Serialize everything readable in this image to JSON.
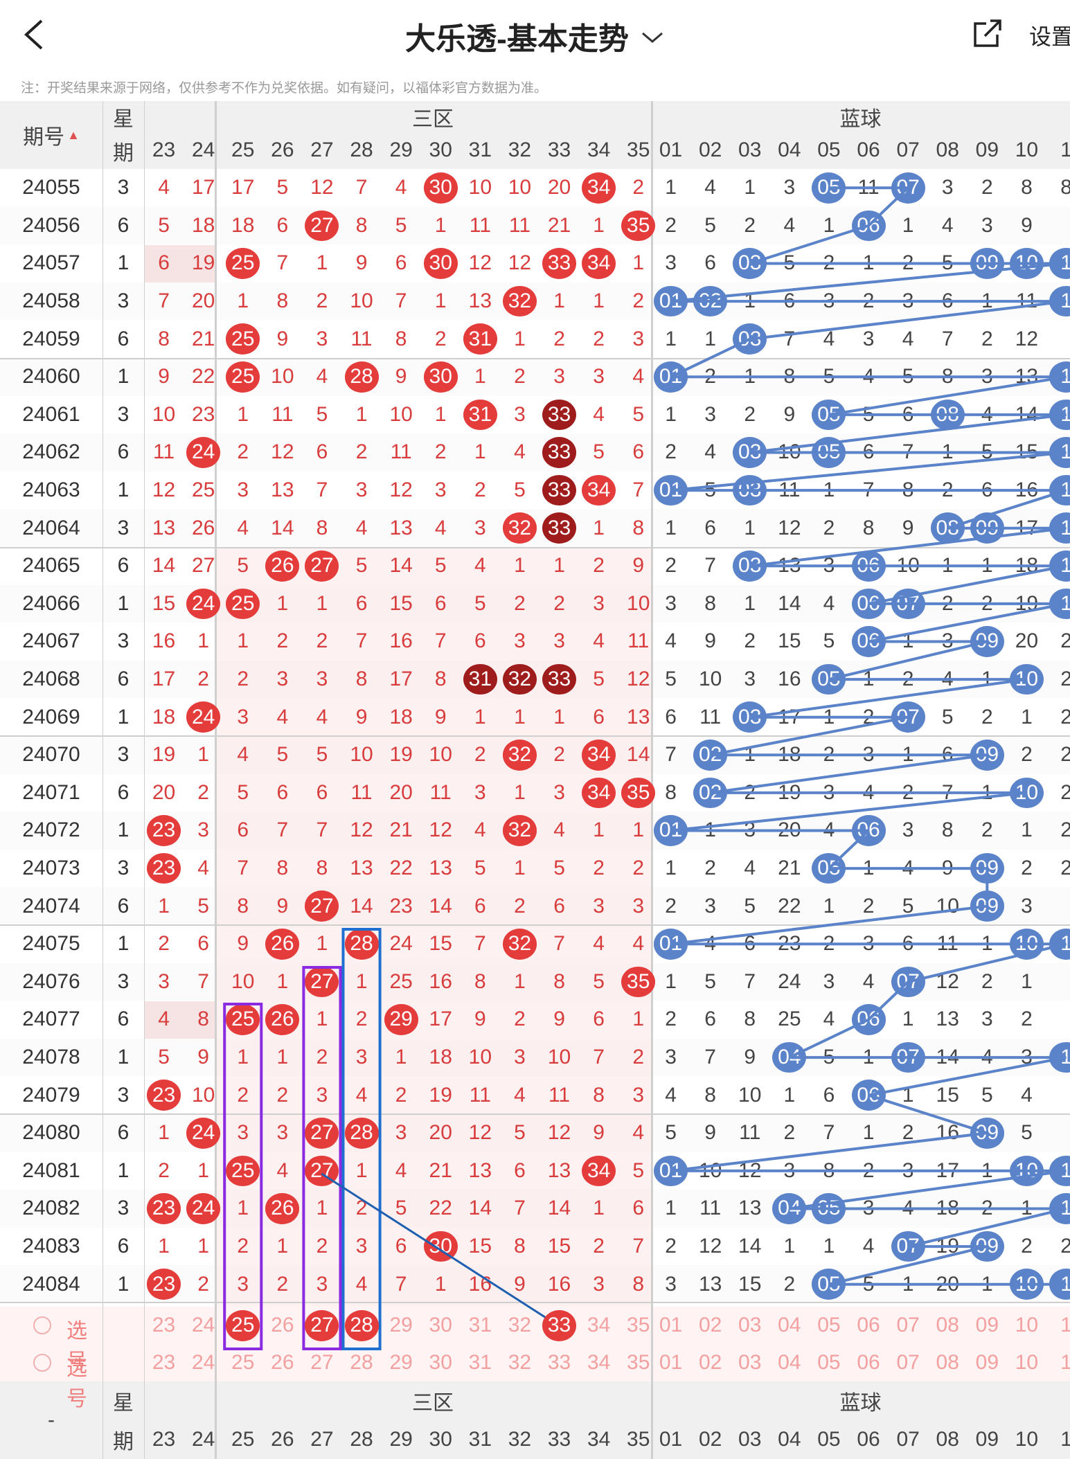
{
  "header": {
    "title": "大乐透-基本走势",
    "settings_label": "设置",
    "note": "注：开奖结果来源于网络，仅供参考不作为兑奖依据。如有疑问，以福体彩官方数据为准。"
  },
  "table": {
    "period_header": "期号",
    "weekday_header": [
      "星",
      "期"
    ],
    "zone3_label": "三区",
    "blue_label": "蓝球",
    "red_cols": [
      "23",
      "24",
      "25",
      "26",
      "27",
      "28",
      "29",
      "30",
      "31",
      "32",
      "33",
      "34",
      "35"
    ],
    "blue_cols": [
      "01",
      "02",
      "03",
      "04",
      "05",
      "06",
      "07",
      "08",
      "09",
      "10",
      "1"
    ],
    "select_label": "选号",
    "bottom_dash": "-",
    "rows": [
      {
        "p": "24055",
        "w": "3",
        "r": [
          "4",
          "17",
          "17",
          "5",
          "12",
          "7",
          "4",
          "30",
          "10",
          "10",
          "20",
          "34",
          "2"
        ],
        "b": [
          "1",
          "4",
          "1",
          "3",
          "05",
          "11",
          "07",
          "3",
          "2",
          "8",
          "8"
        ]
      },
      {
        "p": "24056",
        "w": "6",
        "r": [
          "5",
          "18",
          "18",
          "6",
          "27",
          "8",
          "5",
          "1",
          "11",
          "11",
          "21",
          "1",
          "35"
        ],
        "b": [
          "2",
          "5",
          "2",
          "4",
          "1",
          "06",
          "1",
          "4",
          "3",
          "9",
          ""
        ]
      },
      {
        "p": "24057",
        "w": "1",
        "r": [
          "6",
          "19",
          "25",
          "7",
          "1",
          "9",
          "6",
          "30",
          "12",
          "12",
          "33",
          "34",
          "1"
        ],
        "b": [
          "3",
          "6",
          "03",
          "5",
          "2",
          "1",
          "2",
          "5",
          "09",
          "10",
          "1"
        ]
      },
      {
        "p": "24058",
        "w": "3",
        "r": [
          "7",
          "20",
          "1",
          "8",
          "2",
          "10",
          "7",
          "1",
          "13",
          "32",
          "1",
          "1",
          "2"
        ],
        "b": [
          "01",
          "02",
          "1",
          "6",
          "3",
          "2",
          "3",
          "6",
          "1",
          "11",
          "1"
        ]
      },
      {
        "p": "24059",
        "w": "6",
        "r": [
          "8",
          "21",
          "25",
          "9",
          "3",
          "11",
          "8",
          "2",
          "31",
          "1",
          "2",
          "2",
          "3"
        ],
        "b": [
          "1",
          "1",
          "03",
          "7",
          "4",
          "3",
          "4",
          "7",
          "2",
          "12",
          ""
        ]
      },
      {
        "p": "24060",
        "w": "1",
        "r": [
          "9",
          "22",
          "25",
          "10",
          "4",
          "28",
          "9",
          "30",
          "1",
          "2",
          "3",
          "3",
          "4"
        ],
        "b": [
          "01",
          "2",
          "1",
          "8",
          "5",
          "4",
          "5",
          "8",
          "3",
          "13",
          "1"
        ]
      },
      {
        "p": "24061",
        "w": "3",
        "r": [
          "10",
          "23",
          "1",
          "11",
          "5",
          "1",
          "10",
          "1",
          "31",
          "3",
          "33",
          "4",
          "5"
        ],
        "b": [
          "1",
          "3",
          "2",
          "9",
          "05",
          "5",
          "6",
          "08",
          "4",
          "14",
          "1"
        ]
      },
      {
        "p": "24062",
        "w": "6",
        "r": [
          "11",
          "24",
          "2",
          "12",
          "6",
          "2",
          "11",
          "2",
          "1",
          "4",
          "33",
          "5",
          "6"
        ],
        "b": [
          "2",
          "4",
          "03",
          "10",
          "05",
          "6",
          "7",
          "1",
          "5",
          "15",
          "1"
        ]
      },
      {
        "p": "24063",
        "w": "1",
        "r": [
          "12",
          "25",
          "3",
          "13",
          "7",
          "3",
          "12",
          "3",
          "2",
          "5",
          "33",
          "34",
          "7"
        ],
        "b": [
          "01",
          "5",
          "03",
          "11",
          "1",
          "7",
          "8",
          "2",
          "6",
          "16",
          "1"
        ]
      },
      {
        "p": "24064",
        "w": "3",
        "r": [
          "13",
          "26",
          "4",
          "14",
          "8",
          "4",
          "13",
          "4",
          "3",
          "32",
          "33",
          "1",
          "8"
        ],
        "b": [
          "1",
          "6",
          "1",
          "12",
          "2",
          "8",
          "9",
          "08",
          "09",
          "17",
          "1"
        ]
      },
      {
        "p": "24065",
        "w": "6",
        "r": [
          "14",
          "27",
          "5",
          "26",
          "27",
          "5",
          "14",
          "5",
          "4",
          "1",
          "1",
          "2",
          "9"
        ],
        "b": [
          "2",
          "7",
          "03",
          "13",
          "3",
          "06",
          "10",
          "1",
          "1",
          "18",
          "1"
        ]
      },
      {
        "p": "24066",
        "w": "1",
        "r": [
          "15",
          "24",
          "25",
          "1",
          "1",
          "6",
          "15",
          "6",
          "5",
          "2",
          "2",
          "3",
          "10"
        ],
        "b": [
          "3",
          "8",
          "1",
          "14",
          "4",
          "06",
          "07",
          "2",
          "2",
          "19",
          "1"
        ]
      },
      {
        "p": "24067",
        "w": "3",
        "r": [
          "16",
          "1",
          "1",
          "2",
          "2",
          "7",
          "16",
          "7",
          "6",
          "3",
          "3",
          "4",
          "11"
        ],
        "b": [
          "4",
          "9",
          "2",
          "15",
          "5",
          "06",
          "1",
          "3",
          "09",
          "20",
          "2"
        ]
      },
      {
        "p": "24068",
        "w": "6",
        "r": [
          "17",
          "2",
          "2",
          "3",
          "3",
          "8",
          "17",
          "8",
          "31",
          "32",
          "33",
          "5",
          "12"
        ],
        "b": [
          "5",
          "10",
          "3",
          "16",
          "05",
          "1",
          "2",
          "4",
          "1",
          "10",
          "2"
        ]
      },
      {
        "p": "24069",
        "w": "1",
        "r": [
          "18",
          "24",
          "3",
          "4",
          "4",
          "9",
          "18",
          "9",
          "1",
          "1",
          "1",
          "6",
          "13"
        ],
        "b": [
          "6",
          "11",
          "03",
          "17",
          "1",
          "2",
          "07",
          "5",
          "2",
          "1",
          "2"
        ]
      },
      {
        "p": "24070",
        "w": "3",
        "r": [
          "19",
          "1",
          "4",
          "5",
          "5",
          "10",
          "19",
          "10",
          "2",
          "32",
          "2",
          "34",
          "14"
        ],
        "b": [
          "7",
          "02",
          "1",
          "18",
          "2",
          "3",
          "1",
          "6",
          "09",
          "2",
          "2"
        ]
      },
      {
        "p": "24071",
        "w": "6",
        "r": [
          "20",
          "2",
          "5",
          "6",
          "6",
          "11",
          "20",
          "11",
          "3",
          "1",
          "3",
          "34",
          "35"
        ],
        "b": [
          "8",
          "02",
          "2",
          "19",
          "3",
          "4",
          "2",
          "7",
          "1",
          "10",
          "2"
        ]
      },
      {
        "p": "24072",
        "w": "1",
        "r": [
          "23",
          "3",
          "6",
          "7",
          "7",
          "12",
          "21",
          "12",
          "4",
          "32",
          "4",
          "1",
          "1"
        ],
        "b": [
          "01",
          "1",
          "3",
          "20",
          "4",
          "06",
          "3",
          "8",
          "2",
          "1",
          "2"
        ]
      },
      {
        "p": "24073",
        "w": "3",
        "r": [
          "23",
          "4",
          "7",
          "8",
          "8",
          "13",
          "22",
          "13",
          "5",
          "1",
          "5",
          "2",
          "2"
        ],
        "b": [
          "1",
          "2",
          "4",
          "21",
          "05",
          "1",
          "4",
          "9",
          "09",
          "2",
          "2"
        ]
      },
      {
        "p": "24074",
        "w": "6",
        "r": [
          "1",
          "5",
          "8",
          "9",
          "27",
          "14",
          "23",
          "14",
          "6",
          "2",
          "6",
          "3",
          "3"
        ],
        "b": [
          "2",
          "3",
          "5",
          "22",
          "1",
          "2",
          "5",
          "10",
          "09",
          "3",
          ""
        ]
      },
      {
        "p": "24075",
        "w": "1",
        "r": [
          "2",
          "6",
          "9",
          "26",
          "1",
          "28",
          "24",
          "15",
          "7",
          "32",
          "7",
          "4",
          "4"
        ],
        "b": [
          "01",
          "4",
          "6",
          "23",
          "2",
          "3",
          "6",
          "11",
          "1",
          "10",
          "1"
        ]
      },
      {
        "p": "24076",
        "w": "3",
        "r": [
          "3",
          "7",
          "10",
          "1",
          "27",
          "1",
          "25",
          "16",
          "8",
          "1",
          "8",
          "5",
          "35"
        ],
        "b": [
          "1",
          "5",
          "7",
          "24",
          "3",
          "4",
          "07",
          "12",
          "2",
          "1",
          ""
        ]
      },
      {
        "p": "24077",
        "w": "6",
        "r": [
          "4",
          "8",
          "25",
          "26",
          "1",
          "2",
          "29",
          "17",
          "9",
          "2",
          "9",
          "6",
          "1"
        ],
        "b": [
          "2",
          "6",
          "8",
          "25",
          "4",
          "06",
          "1",
          "13",
          "3",
          "2",
          ""
        ]
      },
      {
        "p": "24078",
        "w": "1",
        "r": [
          "5",
          "9",
          "1",
          "1",
          "2",
          "3",
          "1",
          "18",
          "10",
          "3",
          "10",
          "7",
          "2"
        ],
        "b": [
          "3",
          "7",
          "9",
          "04",
          "5",
          "1",
          "07",
          "14",
          "4",
          "3",
          "1"
        ]
      },
      {
        "p": "24079",
        "w": "3",
        "r": [
          "23",
          "10",
          "2",
          "2",
          "3",
          "4",
          "2",
          "19",
          "11",
          "4",
          "11",
          "8",
          "3"
        ],
        "b": [
          "4",
          "8",
          "10",
          "1",
          "6",
          "06",
          "1",
          "15",
          "5",
          "4",
          ""
        ]
      },
      {
        "p": "24080",
        "w": "6",
        "r": [
          "1",
          "24",
          "3",
          "3",
          "27",
          "28",
          "3",
          "20",
          "12",
          "5",
          "12",
          "9",
          "4"
        ],
        "b": [
          "5",
          "9",
          "11",
          "2",
          "7",
          "1",
          "2",
          "16",
          "09",
          "5",
          ""
        ]
      },
      {
        "p": "24081",
        "w": "1",
        "r": [
          "2",
          "1",
          "25",
          "4",
          "27",
          "1",
          "4",
          "21",
          "13",
          "6",
          "13",
          "34",
          "5"
        ],
        "b": [
          "01",
          "10",
          "12",
          "3",
          "8",
          "2",
          "3",
          "17",
          "1",
          "10",
          "1"
        ]
      },
      {
        "p": "24082",
        "w": "3",
        "r": [
          "23",
          "24",
          "1",
          "26",
          "1",
          "2",
          "5",
          "22",
          "14",
          "7",
          "14",
          "1",
          "6"
        ],
        "b": [
          "1",
          "11",
          "13",
          "04",
          "05",
          "3",
          "4",
          "18",
          "2",
          "1",
          "1"
        ]
      },
      {
        "p": "24083",
        "w": "6",
        "r": [
          "1",
          "1",
          "2",
          "1",
          "2",
          "3",
          "6",
          "30",
          "15",
          "8",
          "15",
          "2",
          "7"
        ],
        "b": [
          "2",
          "12",
          "14",
          "1",
          "1",
          "4",
          "07",
          "19",
          "09",
          "2",
          "2"
        ]
      },
      {
        "p": "24084",
        "w": "1",
        "r": [
          "23",
          "2",
          "3",
          "2",
          "3",
          "4",
          "7",
          "1",
          "16",
          "9",
          "16",
          "3",
          "8"
        ],
        "b": [
          "3",
          "13",
          "15",
          "2",
          "05",
          "5",
          "1",
          "20",
          "1",
          "10",
          "1"
        ]
      }
    ],
    "select_row1": [
      "23",
      "24",
      "25",
      "26",
      "27",
      "28",
      "29",
      "30",
      "31",
      "32",
      "33",
      "34",
      "35",
      "01",
      "02",
      "03",
      "04",
      "05",
      "06",
      "07",
      "08",
      "09",
      "10",
      "1"
    ],
    "select_row2": [
      "23",
      "24",
      "25",
      "26",
      "27",
      "28",
      "29",
      "30",
      "31",
      "32",
      "33",
      "34",
      "35",
      "01",
      "02",
      "03",
      "04",
      "05",
      "06",
      "07",
      "08",
      "09",
      "10",
      "1"
    ],
    "selected_red": [
      "25",
      "27",
      "28",
      "33"
    ],
    "colors": {
      "red_ball": "#e43b3b",
      "dark_ball": "#9e1c1c",
      "blue_ball": "#5b83c9",
      "header_bg": "#eeeeee"
    }
  }
}
